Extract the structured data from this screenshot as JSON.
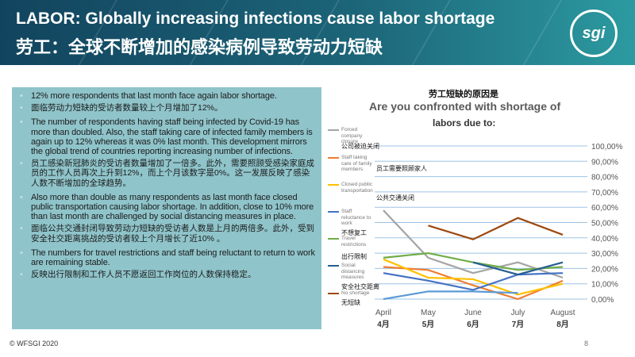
{
  "header": {
    "title_en": "LABOR: Globally increasing infections cause labor shortage",
    "title_cn": "劳工：全球不断增加的感染病例导致劳动力短缺",
    "logo_text": "sgi",
    "logo_ring_text": "WORLD FEDERATION SPORTING GOODS INDUSTRY"
  },
  "bullets": [
    {
      "text": "12% more respondents that last month face again labor shortage.",
      "lang": "en"
    },
    {
      "text": "面临劳动力短缺的受访者数量较上个月增加了12%。",
      "lang": "cn"
    },
    {
      "text": "The number of respondents having staff being infected by Covid-19 has more than doubled. Also,  the staff taking care of infected family members is again up to 12% whereas it was 0% last month. This development mirrors the global trend of countries reporting increasing number of infections.",
      "lang": "en"
    },
    {
      "text": "员工感染新冠肺炎的受访者数量增加了一倍多。此外，需要照顾受感染家庭成员的工作人员再次上升到12%，而上个月该数字是0%。这一发展反映了感染人数不断增加的全球趋势。",
      "lang": "cn"
    },
    {
      "text": "Also more than double as many respondents as last month face closed public transportation causing labor shortage. In addition, close to 10% more than last month are challenged by social distancing measures in place.",
      "lang": "en"
    },
    {
      "text": "面临公共交通封闭导致劳动力短缺的受访者人数是上月的两倍多。此外，受到安全社交距离挑战的受访者较上个月增长了近10% 。",
      "lang": "cn"
    },
    {
      "text": "The numbers for travel restrictions and staff being reluctant to return to work are remaining stable.",
      "lang": "en"
    },
    {
      "text": "反映出行限制和工作人员不愿返回工作岗位的人数保持稳定。",
      "lang": "cn"
    }
  ],
  "chart_data": {
    "type": "line",
    "title_cn": "劳工短缺的原因是",
    "title": "Are you confronted with shortage of",
    "title_line2": "labors due to:",
    "categories": [
      "April",
      "May",
      "June",
      "July",
      "August"
    ],
    "categories_cn": [
      "4月",
      "5月",
      "6月",
      "7月",
      "8月"
    ],
    "ylim": [
      0,
      100
    ],
    "yticks": [
      "0,00%",
      "10,00%",
      "20,00%",
      "30,00%",
      "40,00%",
      "50,00%",
      "60,00%",
      "70,00%",
      "80,00%",
      "90,00%",
      "100,00%"
    ],
    "grid": true,
    "legend_position": "left",
    "series": [
      {
        "name": "Forced company closure",
        "name_cn": "公司被迫关闭",
        "color": "#a5a5a5",
        "values": [
          58,
          27,
          17,
          24,
          14
        ]
      },
      {
        "name": "Staff taking care of family members",
        "name_cn": "员工需要照顾家人",
        "color": "#ed7d31",
        "values": [
          21,
          19,
          9,
          0,
          12
        ]
      },
      {
        "name": "Closed public transportation",
        "name_cn": "公共交通关闭",
        "color": "#ffc000",
        "values": [
          26,
          14,
          13,
          3,
          10
        ]
      },
      {
        "name": "Staff reluctance to work",
        "name_cn": "不想复工",
        "color": "#4472c4",
        "values": [
          17,
          12,
          6,
          16,
          17
        ]
      },
      {
        "name": "Travel restrictions",
        "name_cn": "出行限制",
        "color": "#70ad47",
        "values": [
          27,
          30,
          24,
          19,
          21
        ]
      },
      {
        "name": "Social distancing measures",
        "name_cn": "安全社交距离",
        "color": "#255e91",
        "values": [
          null,
          null,
          24,
          16,
          24
        ]
      },
      {
        "name": "No shortage",
        "name_cn": "无短缺",
        "color": "#9e480e",
        "values": [
          null,
          48,
          39,
          53,
          42
        ]
      },
      {
        "name": "",
        "name_cn": "",
        "color": "#5b9bd5",
        "values": [
          0,
          5,
          5,
          4,
          null
        ]
      }
    ]
  },
  "footer": {
    "copyright": "© WFSGI 2020",
    "page": "8"
  }
}
